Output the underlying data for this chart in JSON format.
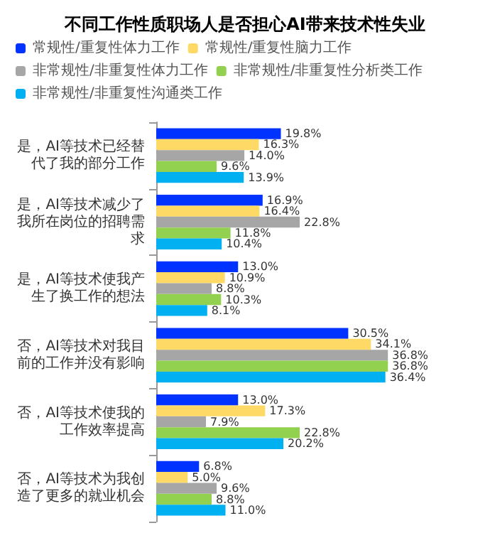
{
  "chart_data": {
    "type": "bar",
    "orientation": "horizontal",
    "title": "不同工作性质职场人是否担心AI带来技术性失业",
    "categories": [
      "是，AI等技术已经替代了我的部分工作",
      "是，AI等技术减少了我所在岗位的招聘需求",
      "是，AI等技术使我产生了换工作的想法",
      "否，AI等技术对我目前的工作并没有影响",
      "否，AI等技术使我的工作效率提高",
      "否，AI等技术为我创造了更多的就业机会"
    ],
    "series": [
      {
        "name": "常规性/重复性体力工作",
        "color": "#0033ff",
        "values": [
          19.8,
          16.9,
          13.0,
          30.5,
          13.0,
          6.8
        ],
        "value_labels": [
          "19.8%",
          "16.9%",
          "13.0%",
          "30.5%",
          "13.0%",
          "6.8%"
        ]
      },
      {
        "name": "常规性/重复性脑力工作",
        "color": "#ffd966",
        "values": [
          16.3,
          16.4,
          10.9,
          34.1,
          17.3,
          5.0
        ],
        "value_labels": [
          "16.3%",
          "16.4%",
          "10.9%",
          "34.1%",
          "17.3%",
          "5.0%"
        ]
      },
      {
        "name": "非常规性/非重复性体力工作",
        "color": "#a6a6a6",
        "values": [
          14.0,
          22.8,
          8.8,
          36.8,
          7.9,
          9.6
        ],
        "value_labels": [
          "14.0%",
          "22.8%",
          "8.8%",
          "36.8%",
          "7.9%",
          "9.6%"
        ]
      },
      {
        "name": "非常规性/非重复性分析类工作",
        "color": "#92d050",
        "values": [
          9.6,
          11.8,
          10.3,
          36.8,
          22.8,
          8.8
        ],
        "value_labels": [
          "9.6%",
          "11.8%",
          "10.3%",
          "36.8%",
          "22.8%",
          "8.8%"
        ]
      },
      {
        "name": "非常规性/非重复性沟通类工作",
        "color": "#00b0f0",
        "values": [
          13.9,
          10.4,
          8.1,
          36.4,
          20.2,
          11.0
        ],
        "value_labels": [
          "13.9%",
          "10.4%",
          "8.1%",
          "36.4%",
          "20.2%",
          "11.0%"
        ]
      }
    ],
    "legend": "top"
  }
}
